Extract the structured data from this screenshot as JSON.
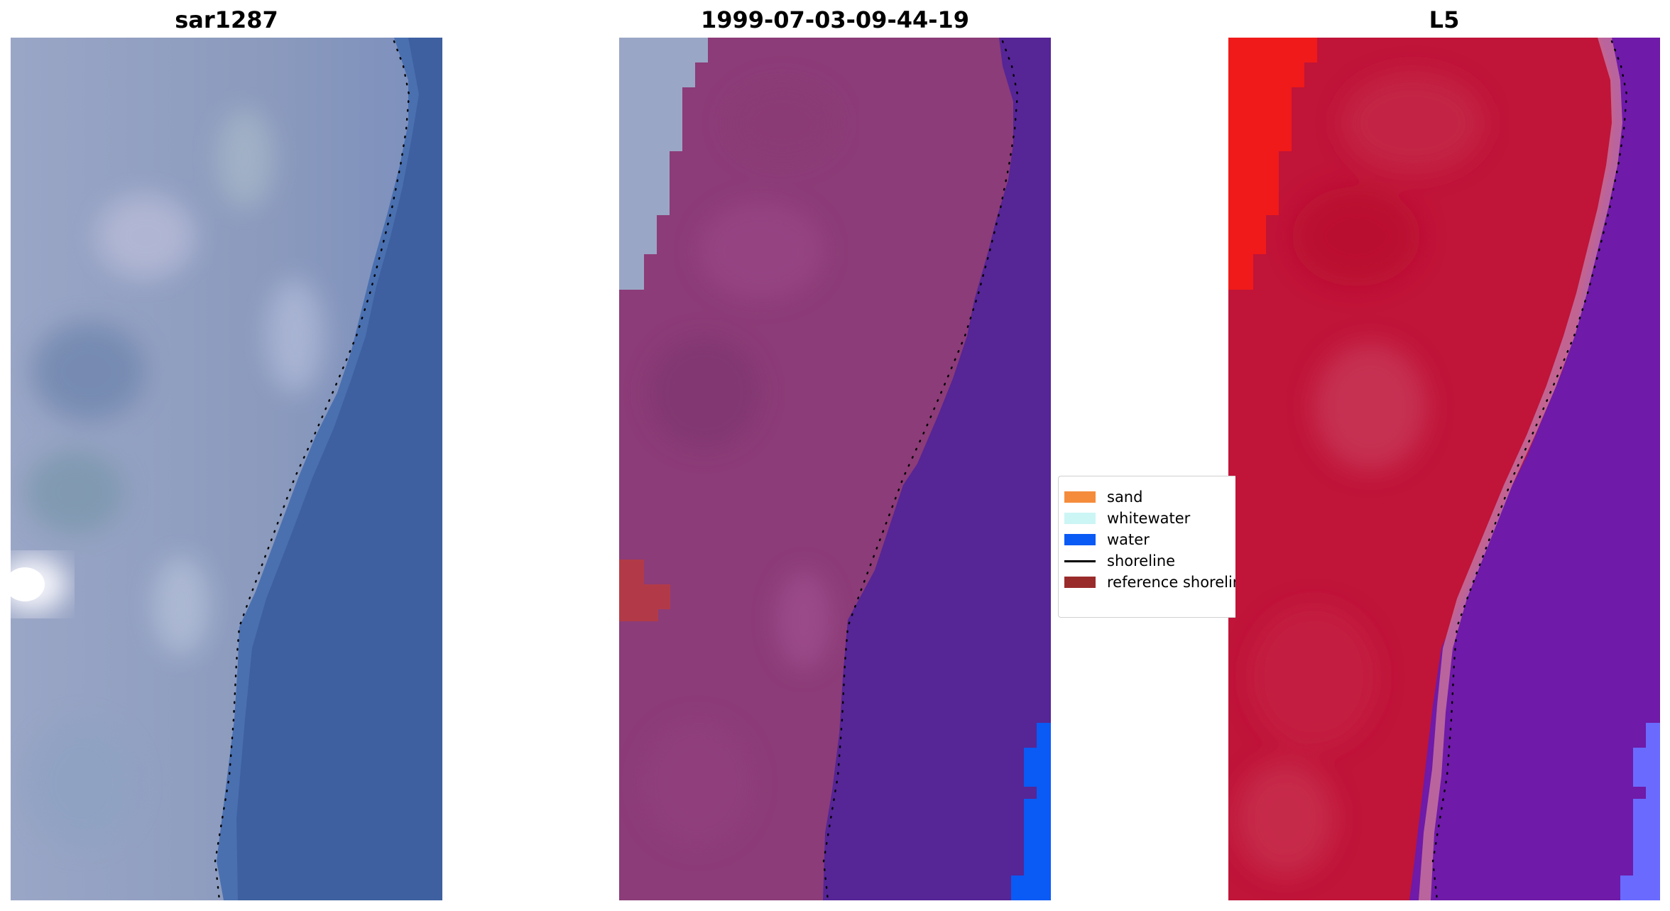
{
  "panels": [
    {
      "title": "sar1287",
      "style": "natural"
    },
    {
      "title": "1999-07-03-09-44-19",
      "style": "classified"
    },
    {
      "title": "L5",
      "style": "false-color"
    }
  ],
  "legend": {
    "items": [
      {
        "label": "sand",
        "color": "#f48c3c",
        "kind": "patch"
      },
      {
        "label": "whitewater",
        "color": "#ccf5f5",
        "kind": "patch"
      },
      {
        "label": "water",
        "color": "#0a5af5",
        "kind": "patch"
      },
      {
        "label": "shoreline",
        "color": "#000000",
        "kind": "line"
      },
      {
        "label": "reference shoreline",
        "color": "#9a2b2b",
        "kind": "patch"
      }
    ]
  },
  "colors": {
    "natural_land": "#8c9bbd",
    "natural_water": "#3f61a0",
    "classified_land": "#8c3c78",
    "classified_water": "#562596",
    "classified_highlight": "#9ba7c6",
    "falsecolor_land": "#c01439",
    "falsecolor_water": "#6f1aa8",
    "shoreline": "#000000"
  }
}
